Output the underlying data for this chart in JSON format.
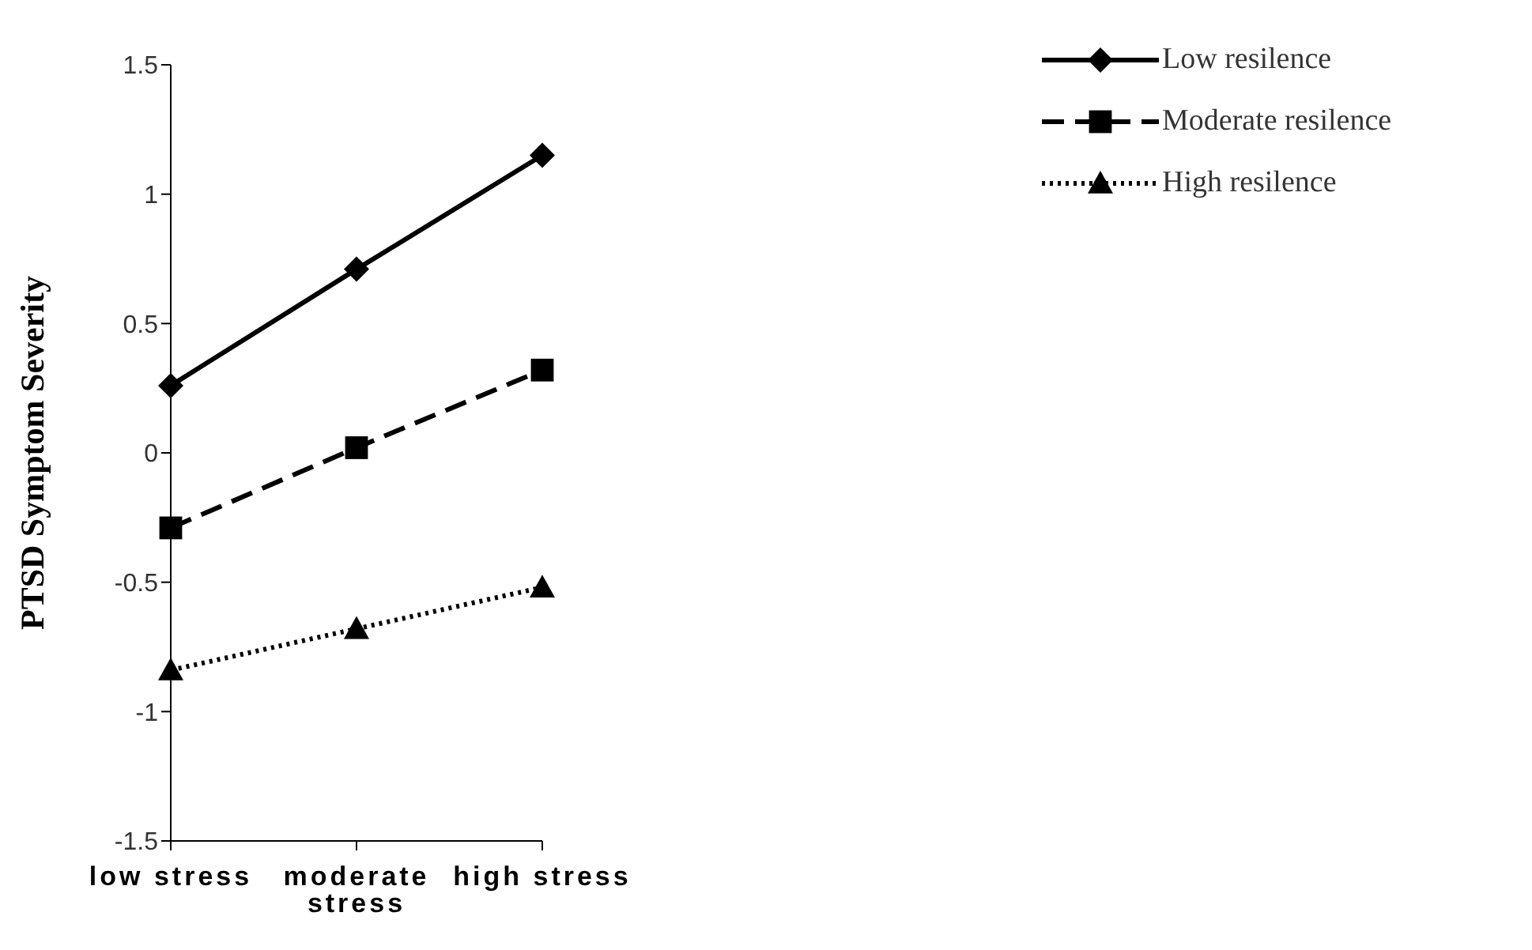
{
  "chart_data": {
    "type": "line",
    "ylabel": "PTSD Symptom Severity",
    "categories": [
      "low stress",
      "moderate stress",
      "high stress"
    ],
    "series": [
      {
        "name": "Low resilence",
        "color": "#000000",
        "values": [
          0.26,
          0.71,
          1.15
        ],
        "marker": "diamond",
        "line_style": "solid"
      },
      {
        "name": "Moderate resilence",
        "color": "#000000",
        "values": [
          -0.29,
          0.02,
          0.32
        ],
        "marker": "square",
        "line_style": "dashed"
      },
      {
        "name": "High resilence",
        "color": "#000000",
        "values": [
          -0.84,
          -0.68,
          -0.52
        ],
        "marker": "triangle",
        "line_style": "dotted"
      }
    ],
    "ylim": [
      -1.5,
      1.5
    ],
    "yticks": [
      -1.5,
      -1,
      -0.5,
      0,
      0.5,
      1,
      1.5
    ],
    "grid": false,
    "legend": "top right"
  }
}
